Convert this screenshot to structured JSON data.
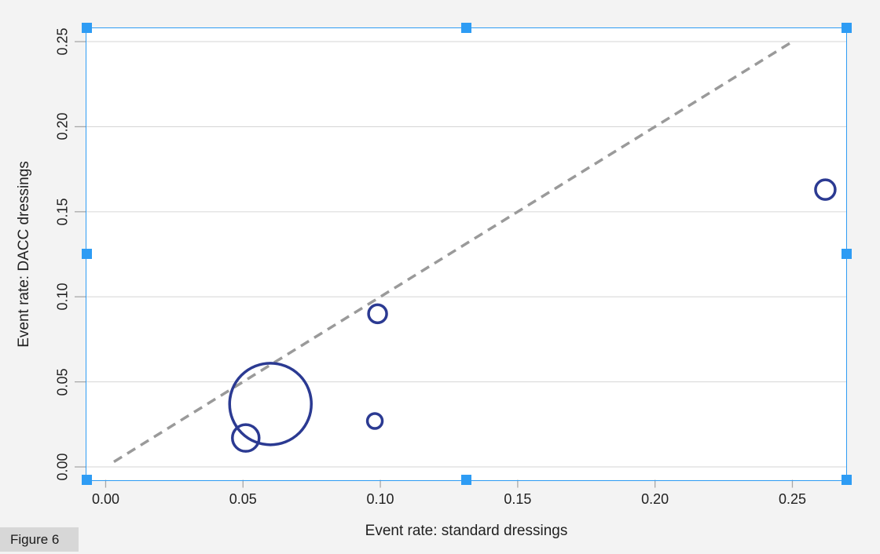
{
  "figure_label": {
    "text": "Figure 6"
  },
  "colors": {
    "page_bg": "#f3f3f3",
    "plot_bg": "#ffffff",
    "grid": "#d6d6d6",
    "tick": "#a8a8a8",
    "axis_text": "#212121",
    "marker": "#2b3a92",
    "identity_line": "#9a9a9a",
    "selection_blue": "#2e9cf4",
    "badge_bg": "#d7d7d7"
  },
  "selection": {
    "handle_positions": [
      "top-left",
      "top-center",
      "top-right",
      "middle-left",
      "middle-right",
      "bottom-left",
      "bottom-center",
      "bottom-right"
    ]
  },
  "chart_data": {
    "type": "scatter",
    "subtype": "labbe-bubble-plot",
    "title": "",
    "xlabel": "Event rate: standard dressings",
    "ylabel": "Event rate: DACC dressings",
    "xlim": [
      -0.007,
      0.2696
    ],
    "ylim": [
      -0.0076,
      0.2581
    ],
    "x_ticks": [
      0,
      0.05,
      0.1,
      0.15,
      0.2,
      0.25
    ],
    "x_tick_labels": [
      "0.00",
      "0.05",
      "0.10",
      "0.15",
      "0.20",
      "0.25"
    ],
    "y_ticks": [
      0,
      0.05,
      0.1,
      0.15,
      0.2,
      0.25
    ],
    "y_tick_labels": [
      "0.00",
      "0.05",
      "0.10",
      "0.15",
      "0.20",
      "0.25"
    ],
    "grid": "horizontal",
    "legend": "none",
    "identity_line": {
      "x1": 0.003,
      "y1": 0.003,
      "x2": 0.249,
      "y2": 0.249,
      "style": "dashed"
    },
    "series": [
      {
        "name": "studies",
        "marker": "open-circle",
        "points": [
          {
            "x": 0.06,
            "y": 0.037,
            "radius_px": 52
          },
          {
            "x": 0.051,
            "y": 0.017,
            "radius_px": 17
          },
          {
            "x": 0.099,
            "y": 0.09,
            "radius_px": 11.5
          },
          {
            "x": 0.098,
            "y": 0.027,
            "radius_px": 9.5
          },
          {
            "x": 0.262,
            "y": 0.163,
            "radius_px": 12.5
          }
        ]
      }
    ]
  }
}
